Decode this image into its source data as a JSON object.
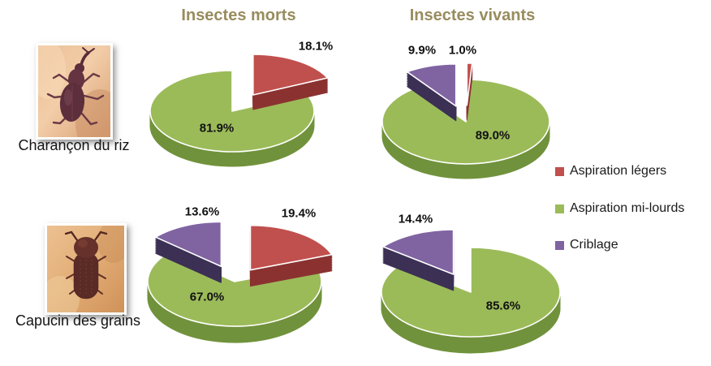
{
  "figure": {
    "background": "#ffffff",
    "title_color": "#988c5e",
    "label_color": "#111111"
  },
  "columns": [
    {
      "title": "Insectes morts"
    },
    {
      "title": "Insectes vivants"
    }
  ],
  "row_labels": [
    {
      "label": "Charançon du riz",
      "image": "rice-weevil-photo"
    },
    {
      "label": "Capucin des grains",
      "image": "grain-borer-photo"
    }
  ],
  "legend": {
    "position": "right",
    "items": [
      {
        "label": "Aspiration légers",
        "color": "#c0504d",
        "side_color": "#8b3230"
      },
      {
        "label": "Aspiration mi-lourds",
        "color": "#9bbb59",
        "side_color": "#71923c"
      },
      {
        "label": "Criblage",
        "color": "#8064a2",
        "side_color": "#3c3055"
      }
    ]
  },
  "chart_data": [
    {
      "type": "pie",
      "row": "Charançon du riz",
      "column": "Insectes morts",
      "slices": [
        {
          "name": "Aspiration légers",
          "value": 18.1,
          "label": "18.1%"
        },
        {
          "name": "Aspiration mi-lourds",
          "value": 81.9,
          "label": "81.9%"
        }
      ]
    },
    {
      "type": "pie",
      "row": "Charançon du riz",
      "column": "Insectes vivants",
      "slices": [
        {
          "name": "Aspiration légers",
          "value": 1.0,
          "label": "1.0%"
        },
        {
          "name": "Aspiration mi-lourds",
          "value": 89.0,
          "label": "89.0%"
        },
        {
          "name": "Criblage",
          "value": 9.9,
          "label": "9.9%"
        }
      ]
    },
    {
      "type": "pie",
      "row": "Capucin des grains",
      "column": "Insectes morts",
      "slices": [
        {
          "name": "Aspiration légers",
          "value": 19.4,
          "label": "19.4%"
        },
        {
          "name": "Aspiration mi-lourds",
          "value": 67.0,
          "label": "67.0%"
        },
        {
          "name": "Criblage",
          "value": 13.6,
          "label": "13.6%"
        }
      ]
    },
    {
      "type": "pie",
      "row": "Capucin des grains",
      "column": "Insectes vivants",
      "slices": [
        {
          "name": "Aspiration mi-lourds",
          "value": 85.6,
          "label": "85.6%"
        },
        {
          "name": "Criblage",
          "value": 14.4,
          "label": "14.4%"
        }
      ]
    }
  ]
}
